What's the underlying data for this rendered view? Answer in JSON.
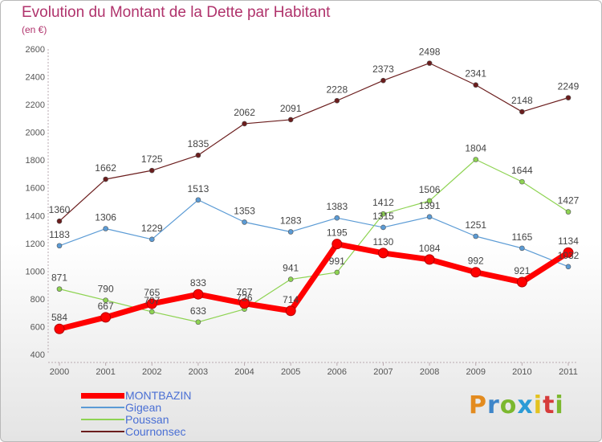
{
  "title": "Evolution du Montant de la Dette par Habitant",
  "subtitle": "(en €)",
  "logo": {
    "text": "Proxiti",
    "colors": [
      "#e38b1f",
      "#3f86c9",
      "#7cb82f",
      "#2b9bd6",
      "#e3c21f",
      "#d63b3b",
      "#7cb82f"
    ]
  },
  "chart_data": {
    "type": "line",
    "title": "Evolution du Montant de la Dette par Habitant",
    "subtitle": "(en €)",
    "x": [
      "2000",
      "2001",
      "2002",
      "2003",
      "2004",
      "2005",
      "2006",
      "2007",
      "2008",
      "2009",
      "2010",
      "2011"
    ],
    "ylim": [
      400,
      2600
    ],
    "yticks": [
      "400",
      "600",
      "800",
      "1000",
      "1200",
      "1400",
      "1600",
      "1800",
      "2000",
      "2200",
      "2400",
      "2600"
    ],
    "grid": false,
    "legend_position": "bottom-left",
    "series": [
      {
        "name": "Cournonsec",
        "color": "#6b1d1d",
        "values": [
          1360,
          1662,
          1725,
          1835,
          2062,
          2091,
          2228,
          2373,
          2498,
          2341,
          2148,
          2249
        ],
        "labels": [
          "1360",
          "1662",
          "1725",
          "1835",
          "2062",
          "2091",
          "2228",
          "2373",
          "2498",
          "2341",
          "2148",
          "2249"
        ]
      },
      {
        "name": "Gigean",
        "color": "#5b9bd5",
        "values": [
          1183,
          1306,
          1229,
          1513,
          1353,
          1283,
          1383,
          1315,
          1391,
          1251,
          1165,
          1032
        ],
        "labels": [
          "1183",
          "1306",
          "1229",
          "1513",
          "1353",
          "1283",
          "1383",
          "1315",
          "1391",
          "1251",
          "1165",
          "1032"
        ]
      },
      {
        "name": "Poussan",
        "color": "#8ed352",
        "values": [
          871,
          790,
          707,
          633,
          726,
          941,
          991,
          1412,
          1506,
          1804,
          1644,
          1427
        ],
        "labels": [
          "871",
          "790",
          "707",
          "633",
          "726",
          "941",
          "991",
          "1412",
          "1506",
          "1804",
          "1644",
          "1427"
        ]
      },
      {
        "name": "MONTBAZIN",
        "color": "#ff0000",
        "values": [
          584,
          667,
          765,
          833,
          767,
          714,
          1195,
          1130,
          1084,
          992,
          921,
          1134
        ],
        "labels": [
          "584",
          "667",
          "765",
          "833",
          "767",
          "714",
          "1195",
          "1130",
          "1084",
          "992",
          "921",
          "1134"
        ]
      }
    ],
    "legend": [
      {
        "name": "MONTBAZIN",
        "color": "#ff0000"
      },
      {
        "name": "Gigean",
        "color": "#5b9bd5"
      },
      {
        "name": "Poussan",
        "color": "#8ed352"
      },
      {
        "name": "Cournonsec",
        "color": "#6b1d1d"
      }
    ]
  }
}
